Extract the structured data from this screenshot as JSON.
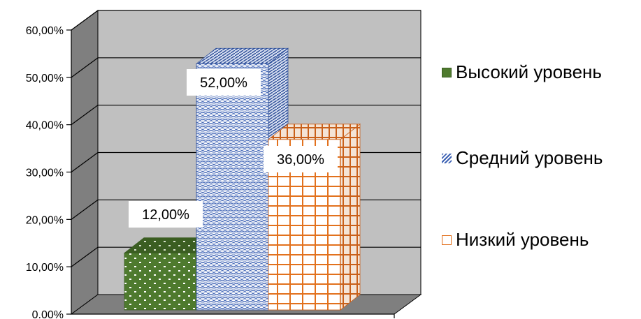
{
  "chart_data": {
    "type": "bar",
    "title": "",
    "xlabel": "",
    "ylabel": "",
    "ylim": [
      0,
      0.6
    ],
    "grid": true,
    "legend_position": "right",
    "y_tick_labels": [
      "0.00%",
      "10,00%",
      "20,00%",
      "30,00%",
      "40,00%",
      "50,00%",
      "60,00%"
    ],
    "series": [
      {
        "name": "Высокий уровень",
        "value": 0.12,
        "label": "12,00%",
        "color": "#4e7a2e",
        "pattern": "dots"
      },
      {
        "name": "Средний уровень",
        "value": 0.52,
        "label": "52,00%",
        "color": "#3d62b4",
        "pattern": "wave"
      },
      {
        "name": "Низкий уровень",
        "value": 0.36,
        "label": "36,00%",
        "color": "#e2711d",
        "pattern": "grid"
      }
    ]
  }
}
